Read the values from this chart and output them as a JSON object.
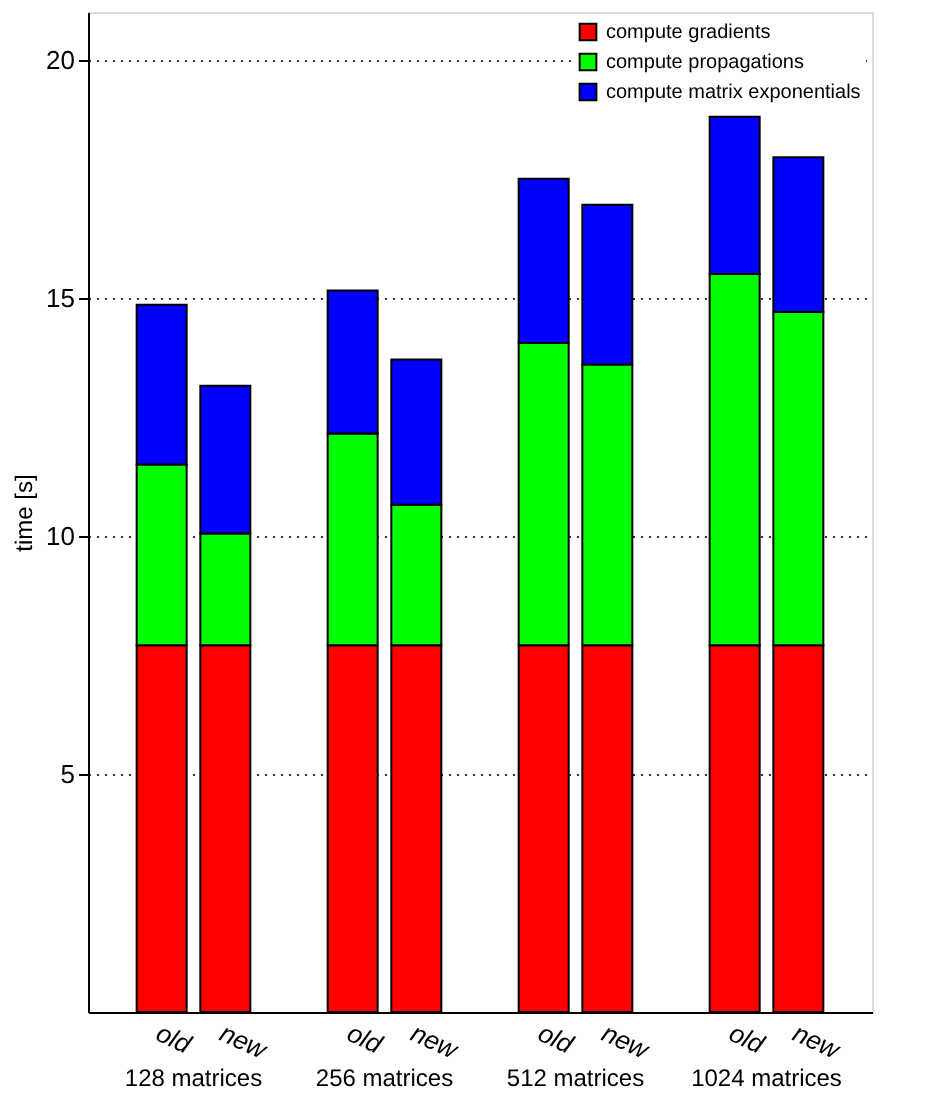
{
  "chart_data": {
    "type": "bar",
    "stacked": true,
    "ylabel": "time [s]",
    "categories": [
      "old",
      "new",
      "old",
      "new",
      "old",
      "new",
      "old",
      "new"
    ],
    "series": [
      {
        "name": "compute gradients",
        "color": "#ff0000",
        "values": [
          7.7,
          7.7,
          7.7,
          7.7,
          7.7,
          7.7,
          7.7,
          7.7
        ]
      },
      {
        "name": "compute propagations",
        "color": "#00ff00",
        "values": [
          3.8,
          2.35,
          4.45,
          2.95,
          6.35,
          5.9,
          7.8,
          7.0
        ]
      },
      {
        "name": "compute matrix exponentials",
        "color": "#0000ff",
        "values": [
          3.35,
          3.1,
          3.0,
          3.05,
          3.45,
          3.35,
          3.3,
          3.25
        ]
      }
    ],
    "ylim": [
      0,
      21
    ],
    "yticks": [
      5,
      10,
      15,
      20
    ],
    "grid": "y",
    "legend": "top right",
    "annotations": [
      "128 matrices",
      "256 matrices",
      "512 matrices",
      "1024 matrices"
    ]
  }
}
